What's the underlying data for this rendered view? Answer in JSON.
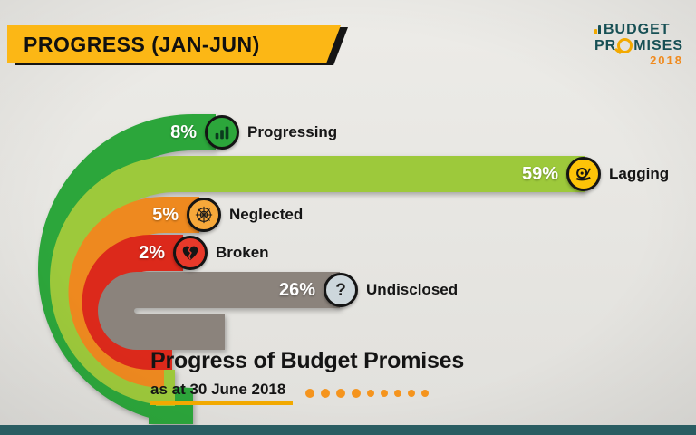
{
  "header": {
    "banner": "PROGRESS (JAN-JUN)"
  },
  "logo": {
    "word1": "BUDGET",
    "word2_pre": "PR",
    "word2_o": "O",
    "word2_post": "MISES",
    "year": "2018",
    "teal": "#175055",
    "yellow": "#f2a900",
    "orange": "#f08a1d"
  },
  "chart_data": {
    "type": "bar",
    "orientation": "horizontal",
    "title": "Progress of Budget Promises",
    "subtitle": "as at 30 June 2018",
    "categories": [
      "Progressing",
      "Lagging",
      "Neglected",
      "Broken",
      "Undisclosed"
    ],
    "values": [
      8,
      59,
      5,
      2,
      26
    ],
    "unit": "%",
    "colors": [
      "#2ca63b",
      "#9dc93b",
      "#ee891f",
      "#dc291b",
      "#8b837c"
    ],
    "legend_position": "none",
    "xlim": [
      0,
      100
    ]
  },
  "bands": [
    {
      "pct": "8%",
      "label": "Progressing",
      "value": 8,
      "color": "#2ca63b",
      "icon": "bar-chart-icon",
      "icon_bg": "#2ca63b"
    },
    {
      "pct": "59%",
      "label": "Lagging",
      "value": 59,
      "color": "#9dc93b",
      "icon": "snail-icon",
      "icon_bg": "#fdc408"
    },
    {
      "pct": "5%",
      "label": "Neglected",
      "value": 5,
      "color": "#ee891f",
      "icon": "spider-web-icon",
      "icon_bg": "#f6a83a"
    },
    {
      "pct": "2%",
      "label": "Broken",
      "value": 2,
      "color": "#dc291b",
      "icon": "broken-heart-icon",
      "icon_bg": "#e8392a"
    },
    {
      "pct": "26%",
      "label": "Undisclosed",
      "value": 26,
      "color": "#8b837c",
      "icon": "question-mark-icon",
      "icon_bg": "#cdd7dc"
    }
  ],
  "caption": {
    "title": "Progress of Budget Promises",
    "subtitle": "as at 30 June 2018",
    "dots_count": 9,
    "dot_color": "#f5941d"
  }
}
